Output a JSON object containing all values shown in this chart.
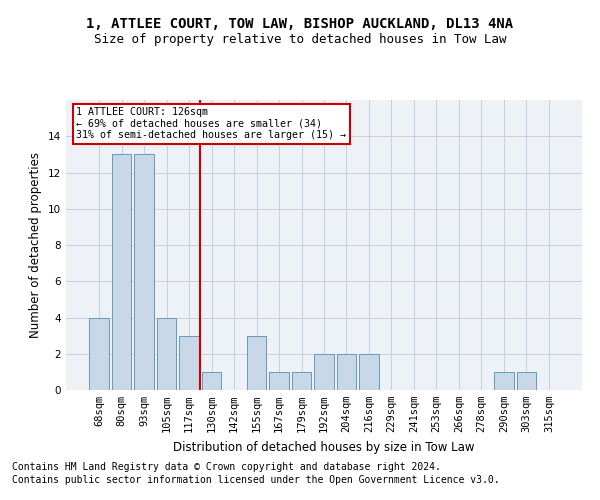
{
  "title1": "1, ATTLEE COURT, TOW LAW, BISHOP AUCKLAND, DL13 4NA",
  "title2": "Size of property relative to detached houses in Tow Law",
  "xlabel": "Distribution of detached houses by size in Tow Law",
  "ylabel": "Number of detached properties",
  "categories": [
    "68sqm",
    "80sqm",
    "93sqm",
    "105sqm",
    "117sqm",
    "130sqm",
    "142sqm",
    "155sqm",
    "167sqm",
    "179sqm",
    "192sqm",
    "204sqm",
    "216sqm",
    "229sqm",
    "241sqm",
    "253sqm",
    "266sqm",
    "278sqm",
    "290sqm",
    "303sqm",
    "315sqm"
  ],
  "values": [
    4,
    13,
    13,
    4,
    3,
    1,
    0,
    3,
    1,
    1,
    2,
    2,
    2,
    0,
    0,
    0,
    0,
    0,
    1,
    1,
    0
  ],
  "bar_color": "#c8d8e8",
  "bar_edge_color": "#6699bb",
  "highlight_line_index": 5,
  "annotation_lines": [
    "1 ATTLEE COURT: 126sqm",
    "← 69% of detached houses are smaller (34)",
    "31% of semi-detached houses are larger (15) →"
  ],
  "annotation_box_color": "#cc0000",
  "ylim": [
    0,
    16
  ],
  "yticks": [
    0,
    2,
    4,
    6,
    8,
    10,
    12,
    14
  ],
  "footnote1": "Contains HM Land Registry data © Crown copyright and database right 2024.",
  "footnote2": "Contains public sector information licensed under the Open Government Licence v3.0.",
  "bg_color": "#eef2f7",
  "grid_color": "#c5cfe0",
  "title1_fontsize": 10,
  "title2_fontsize": 9,
  "axis_label_fontsize": 8.5,
  "tick_fontsize": 7.5,
  "footnote_fontsize": 7
}
